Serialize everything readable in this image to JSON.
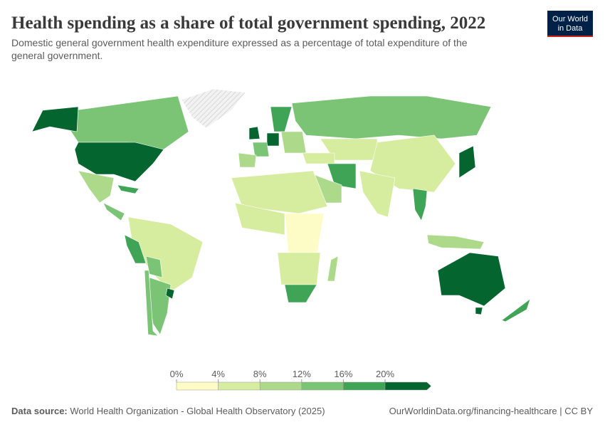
{
  "header": {
    "title": "Health spending as a share of total government spending, 2022",
    "subtitle_lines": [
      "Domestic general government health expenditure expressed as a percentage of total expenditure of the",
      "general government."
    ],
    "logo_lines": [
      "Our World",
      "in Data"
    ]
  },
  "legend": {
    "ticks": [
      {
        "value": 0,
        "label": "0%"
      },
      {
        "value": 4,
        "label": "4%"
      },
      {
        "value": 8,
        "label": "8%"
      },
      {
        "value": 12,
        "label": "12%"
      },
      {
        "value": 16,
        "label": "16%"
      },
      {
        "value": 20,
        "label": "20%"
      }
    ],
    "colors": [
      "#fdfcc6",
      "#d6ec9f",
      "#acd98a",
      "#7bc475",
      "#3fa456",
      "#05652f"
    ]
  },
  "footer": {
    "source_label": "Data source:",
    "source": "World Health Organization - Global Health Observatory (2025)",
    "url": "OurWorldinData.org/financing-healthcare | CC BY"
  }
}
